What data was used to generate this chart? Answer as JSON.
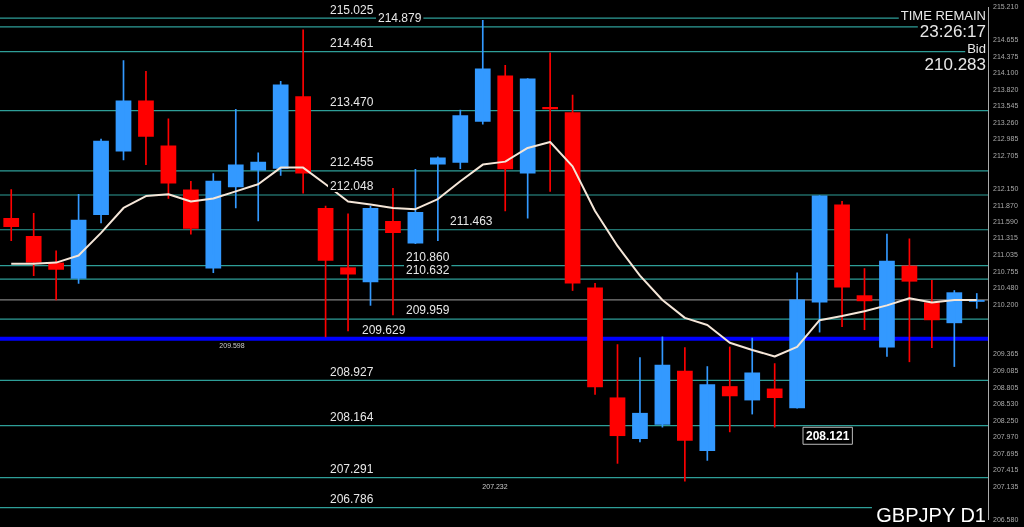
{
  "chart_data": {
    "type": "candlestick",
    "title": "GBPJPY D1",
    "categories": [
      null,
      null,
      null,
      null,
      null,
      null,
      null,
      null,
      null,
      null,
      null,
      null,
      null,
      null,
      null,
      null,
      null,
      null,
      null,
      null,
      null,
      null,
      null,
      null,
      null,
      null,
      null,
      null,
      null,
      null,
      null,
      null,
      null,
      null,
      null,
      null,
      null,
      null,
      null,
      null,
      null,
      null,
      null,
      null
    ],
    "ohlc": [
      [
        211.66,
        212.14,
        211.28,
        211.51
      ],
      [
        211.36,
        211.74,
        210.69,
        210.91
      ],
      [
        210.91,
        211.11,
        210.28,
        210.79
      ],
      [
        210.64,
        212.06,
        210.56,
        211.63
      ],
      [
        211.71,
        212.99,
        211.58,
        212.96
      ],
      [
        212.78,
        214.31,
        212.64,
        213.64
      ],
      [
        213.64,
        214.13,
        212.56,
        213.03
      ],
      [
        212.88,
        213.33,
        211.99,
        212.24
      ],
      [
        212.14,
        212.28,
        211.39,
        211.48
      ],
      [
        210.81,
        212.41,
        210.74,
        212.29
      ],
      [
        212.18,
        213.49,
        211.83,
        212.56
      ],
      [
        212.46,
        212.76,
        211.61,
        212.61
      ],
      [
        212.49,
        213.96,
        212.38,
        213.91
      ],
      [
        213.71,
        214.83,
        212.08,
        212.41
      ],
      [
        211.83,
        211.86,
        209.66,
        210.94
      ],
      [
        210.83,
        211.73,
        209.76,
        210.71
      ],
      [
        210.58,
        211.86,
        210.19,
        211.83
      ],
      [
        211.61,
        212.16,
        210.03,
        211.41
      ],
      [
        211.23,
        212.48,
        211.23,
        211.76
      ],
      [
        212.56,
        212.69,
        211.28,
        212.68
      ],
      [
        212.59,
        213.48,
        212.49,
        213.39
      ],
      [
        213.28,
        214.99,
        213.24,
        214.18
      ],
      [
        214.06,
        214.23,
        211.78,
        212.48
      ],
      [
        212.41,
        214.01,
        211.66,
        214.01
      ],
      [
        213.53,
        214.44,
        212.11,
        213.49
      ],
      [
        213.44,
        213.73,
        210.44,
        210.56
      ],
      [
        210.49,
        210.56,
        208.69,
        208.81
      ],
      [
        208.64,
        209.53,
        207.53,
        207.99
      ],
      [
        207.94,
        209.31,
        207.89,
        208.38
      ],
      [
        208.18,
        209.66,
        208.14,
        209.19
      ],
      [
        209.09,
        209.48,
        207.23,
        207.91
      ],
      [
        207.74,
        209.16,
        207.58,
        208.86
      ],
      [
        208.83,
        209.49,
        208.06,
        208.66
      ],
      [
        208.59,
        209.64,
        208.36,
        209.06
      ],
      [
        208.79,
        209.21,
        208.14,
        208.63
      ],
      [
        208.46,
        210.74,
        208.46,
        210.29
      ],
      [
        210.24,
        212.04,
        209.74,
        212.04
      ],
      [
        211.89,
        211.94,
        209.83,
        210.49
      ],
      [
        210.36,
        210.81,
        209.78,
        210.26
      ],
      [
        209.48,
        211.39,
        209.33,
        210.94
      ],
      [
        210.86,
        211.31,
        209.24,
        210.59
      ],
      [
        210.24,
        210.61,
        209.48,
        209.94
      ],
      [
        209.89,
        210.44,
        209.16,
        210.41
      ],
      [
        210.25,
        210.39,
        210.14,
        210.28
      ]
    ],
    "colors": [
      "#ff0000",
      "#ff0000",
      "#ff0000",
      "#3399ff",
      "#3399ff",
      "#3399ff",
      "#ff0000",
      "#ff0000",
      "#ff0000",
      "#3399ff",
      "#3399ff",
      "#3399ff",
      "#3399ff",
      "#ff0000",
      "#ff0000",
      "#ff0000",
      "#3399ff",
      "#ff0000",
      "#3399ff",
      "#3399ff",
      "#3399ff",
      "#3399ff",
      "#ff0000",
      "#3399ff",
      "#ff0000",
      "#ff0000",
      "#ff0000",
      "#ff0000",
      "#3399ff",
      "#3399ff",
      "#ff0000",
      "#3399ff",
      "#ff0000",
      "#3399ff",
      "#ff0000",
      "#3399ff",
      "#3399ff",
      "#ff0000",
      "#ff0000",
      "#3399ff",
      "#ff0000",
      "#ff0000",
      "#3399ff",
      "#3399ff"
    ],
    "series": [
      {
        "type": "line",
        "color": "#f5e6d8",
        "values": [
          210.89,
          210.89,
          210.91,
          211.03,
          211.41,
          211.83,
          212.03,
          212.06,
          211.94,
          211.99,
          212.11,
          212.23,
          212.51,
          212.51,
          212.23,
          211.94,
          211.89,
          211.83,
          211.81,
          211.98,
          212.28,
          212.56,
          212.61,
          212.84,
          212.94,
          212.53,
          211.78,
          211.19,
          210.69,
          210.28,
          209.98,
          209.86,
          209.56,
          209.44,
          209.33,
          209.49,
          209.94,
          210.01,
          210.09,
          210.19,
          210.31,
          210.24,
          210.28,
          210.28
        ]
      }
    ],
    "ylim": [
      206.58,
      215.21
    ],
    "yticks": [
      {
        "value": 215.21,
        "label": "215.210"
      },
      {
        "value": 214.655,
        "label": "214.655"
      },
      {
        "value": 214.375,
        "label": "214.375"
      },
      {
        "value": 214.1,
        "label": "214.100"
      },
      {
        "value": 213.82,
        "label": "213.820"
      },
      {
        "value": 213.545,
        "label": "213.545"
      },
      {
        "value": 213.26,
        "label": "213.260"
      },
      {
        "value": 212.985,
        "label": "212.985"
      },
      {
        "value": 212.705,
        "label": "212.705"
      },
      {
        "value": 212.15,
        "label": "212.150"
      },
      {
        "value": 211.87,
        "label": "211.870"
      },
      {
        "value": 211.59,
        "label": "211.590"
      },
      {
        "value": 211.315,
        "label": "211.315"
      },
      {
        "value": 211.035,
        "label": "211.035"
      },
      {
        "value": 210.755,
        "label": "210.755"
      },
      {
        "value": 210.48,
        "label": "210.480"
      },
      {
        "value": 210.2,
        "label": "210.200"
      },
      {
        "value": 209.365,
        "label": "209.365"
      },
      {
        "value": 209.085,
        "label": "209.085"
      },
      {
        "value": 208.805,
        "label": "208.805"
      },
      {
        "value": 208.53,
        "label": "208.530"
      },
      {
        "value": 208.25,
        "label": "208.250"
      },
      {
        "value": 207.97,
        "label": "207.970"
      },
      {
        "value": 207.695,
        "label": "207.695"
      },
      {
        "value": 207.415,
        "label": "207.415"
      },
      {
        "value": 207.135,
        "label": "207.135"
      },
      {
        "value": 206.58,
        "label": "206.580"
      }
    ],
    "ref_lines": [
      {
        "axis": "y",
        "value": 215.025,
        "label": "215.025",
        "color": "#2e9e98"
      },
      {
        "axis": "y",
        "value": 214.879,
        "label": "214.879",
        "color": "#2e9e98"
      },
      {
        "axis": "y",
        "value": 214.461,
        "label": "214.461",
        "color": "#2e9e98"
      },
      {
        "axis": "y",
        "value": 213.47,
        "label": "213.470",
        "color": "#2e9e98"
      },
      {
        "axis": "y",
        "value": 212.455,
        "label": "212.455",
        "color": "#2e9e98"
      },
      {
        "axis": "y",
        "value": 212.048,
        "label": "212.048",
        "color": "#2e9e98"
      },
      {
        "axis": "y",
        "value": 211.463,
        "label": "211.463",
        "color": "#2e9e98"
      },
      {
        "axis": "y",
        "value": 210.86,
        "label": "210.860",
        "color": "#2e9e98"
      },
      {
        "axis": "y",
        "value": 210.632,
        "label": "210.632",
        "color": "#2e9e98"
      },
      {
        "axis": "y",
        "value": 210.283,
        "color": "#808080"
      },
      {
        "axis": "y",
        "value": 209.959,
        "label": "209.959",
        "color": "#2e9e98"
      },
      {
        "axis": "y",
        "value": 209.629,
        "label": "209.629",
        "color": "#0000ff"
      },
      {
        "axis": "y",
        "value": 208.927,
        "label": "208.927",
        "color": "#2e9e98"
      },
      {
        "axis": "y",
        "value": 208.164,
        "label": "208.164",
        "color": "#2e9e98"
      },
      {
        "axis": "y",
        "value": 207.291,
        "label": "207.291",
        "color": "#2e9e98"
      },
      {
        "axis": "y",
        "value": 206.786,
        "label": "206.786",
        "color": "#2e9e98"
      }
    ],
    "annotations": [
      "TIME REMAIN",
      "23:26:17",
      "Bid",
      "210.283",
      {
        "text": "208.121",
        "y": 208.121
      },
      {
        "text": "209.598",
        "y": 209.598
      },
      {
        "text": "207.232",
        "y": 207.232
      }
    ],
    "legend": false,
    "grid": false
  }
}
